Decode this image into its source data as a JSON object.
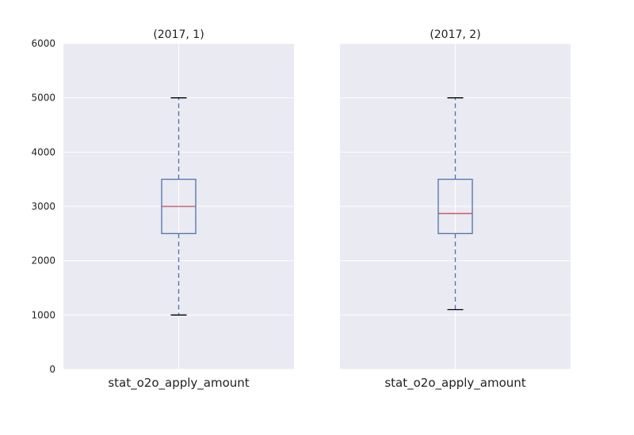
{
  "chart_data": [
    {
      "type": "box",
      "title": "(2017, 1)",
      "categories": [
        "stat_o2o_apply_amount"
      ],
      "ylim": [
        0,
        6000
      ],
      "yticks": [
        0,
        1000,
        2000,
        3000,
        4000,
        5000,
        6000
      ],
      "grid": true,
      "box": {
        "whisker_low": 1000,
        "q1": 2500,
        "median": 3000,
        "q3": 3500,
        "whisker_high": 5000
      }
    },
    {
      "type": "box",
      "title": "(2017, 2)",
      "categories": [
        "stat_o2o_apply_amount"
      ],
      "ylim": [
        0,
        6000
      ],
      "yticks": [
        0,
        1000,
        2000,
        3000,
        4000,
        5000,
        6000
      ],
      "grid": true,
      "box": {
        "whisker_low": 1100,
        "q1": 2500,
        "median": 2870,
        "q3": 3500,
        "whisker_high": 5000
      }
    }
  ],
  "colors": {
    "panel_bg": "#eaeaf2",
    "grid": "#ffffff",
    "box": "#4c72b0",
    "median": "#c44e52",
    "whisker": "#4c72b0",
    "cap": "#000000"
  }
}
